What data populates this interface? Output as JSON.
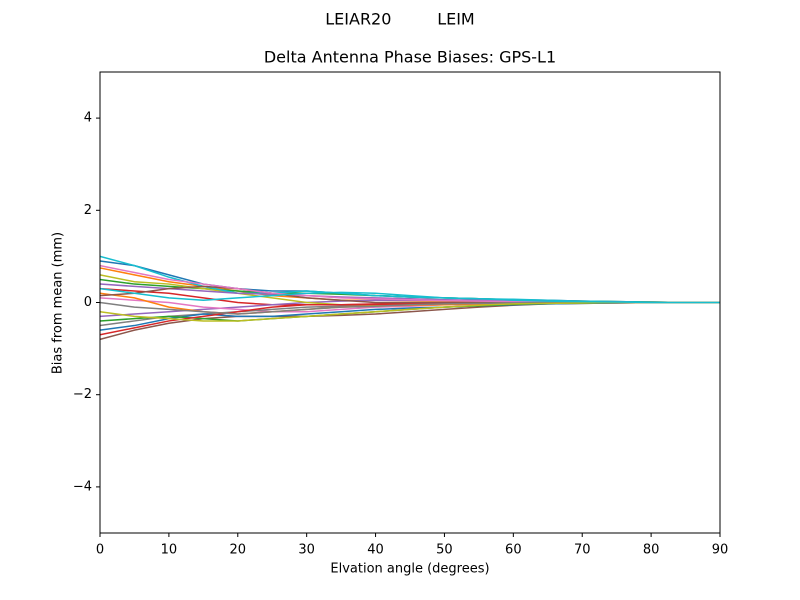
{
  "chart_data": {
    "type": "line",
    "suptitle": "LEIAR20         LEIM",
    "title": "Delta Antenna Phase Biases: GPS-L1",
    "xlabel": "Elvation angle (degrees)",
    "ylabel": "Bias from mean (mm)",
    "x": [
      0,
      5,
      10,
      15,
      20,
      25,
      30,
      35,
      40,
      45,
      50,
      55,
      60,
      65,
      70,
      75,
      80,
      85,
      90
    ],
    "xlim": [
      0,
      90
    ],
    "xticks": [
      0,
      10,
      20,
      30,
      40,
      50,
      60,
      70,
      80,
      90
    ],
    "ylim": [
      -5,
      5
    ],
    "yticks": [
      {
        "value": -4,
        "label": "−4"
      },
      {
        "value": -2,
        "label": "−2"
      },
      0,
      2,
      4
    ],
    "grid": false,
    "series": [
      {
        "color": "#1f77b4",
        "values": [
          0.9,
          0.8,
          0.6,
          0.4,
          0.3,
          0.25,
          0.25,
          0.2,
          0.15,
          0.12,
          0.1,
          0.08,
          0.06,
          0.05,
          0.03,
          0.02,
          0.01,
          0,
          0
        ]
      },
      {
        "color": "#ff7f0e",
        "values": [
          0.75,
          0.6,
          0.45,
          0.35,
          0.25,
          0.15,
          0.1,
          0.05,
          0.05,
          0.04,
          0.03,
          0.02,
          0.02,
          0.01,
          0.01,
          0,
          0,
          0,
          0
        ]
      },
      {
        "color": "#2ca02c",
        "values": [
          0.5,
          0.4,
          0.35,
          0.3,
          0.25,
          0.2,
          0.2,
          0.18,
          0.15,
          0.12,
          0.1,
          0.08,
          0.06,
          0.04,
          0.03,
          0.02,
          0.01,
          0,
          0
        ]
      },
      {
        "color": "#d62728",
        "values": [
          0.3,
          0.25,
          0.2,
          0.1,
          0,
          -0.05,
          -0.05,
          -0.05,
          -0.03,
          -0.02,
          -0.01,
          0,
          0,
          0,
          0,
          0,
          0,
          0,
          0
        ]
      },
      {
        "color": "#9467bd",
        "values": [
          -0.3,
          -0.25,
          -0.2,
          -0.15,
          -0.1,
          -0.05,
          0,
          0.03,
          0.05,
          0.05,
          0.05,
          0.04,
          0.03,
          0.02,
          0.01,
          0.01,
          0,
          0,
          0
        ]
      },
      {
        "color": "#8c564b",
        "values": [
          -0.8,
          -0.6,
          -0.45,
          -0.35,
          -0.3,
          -0.3,
          -0.3,
          -0.28,
          -0.25,
          -0.2,
          -0.15,
          -0.1,
          -0.06,
          -0.03,
          -0.02,
          -0.01,
          0,
          0,
          0
        ]
      },
      {
        "color": "#e377c2",
        "values": [
          0.1,
          0.05,
          0,
          -0.1,
          -0.15,
          -0.2,
          -0.2,
          -0.15,
          -0.1,
          -0.08,
          -0.05,
          -0.04,
          -0.03,
          -0.02,
          -0.01,
          0,
          0,
          0,
          0
        ]
      },
      {
        "color": "#7f7f7f",
        "values": [
          -0.5,
          -0.4,
          -0.3,
          -0.25,
          -0.2,
          -0.15,
          -0.1,
          -0.08,
          -0.05,
          -0.03,
          -0.02,
          -0.01,
          0,
          0,
          0,
          0,
          0,
          0,
          0
        ]
      },
      {
        "color": "#bcbd22",
        "values": [
          0.6,
          0.45,
          0.4,
          0.3,
          0.2,
          0.1,
          0,
          -0.05,
          -0.05,
          -0.04,
          -0.03,
          -0.02,
          -0.01,
          0,
          0,
          0,
          0,
          0,
          0
        ]
      },
      {
        "color": "#17becf",
        "values": [
          1.0,
          0.8,
          0.55,
          0.35,
          0.2,
          0.2,
          0.25,
          0.2,
          0.15,
          0.12,
          0.1,
          0.08,
          0.07,
          0.05,
          0.03,
          0.02,
          0.01,
          0,
          0
        ]
      },
      {
        "color": "#1f77b4",
        "values": [
          -0.6,
          -0.5,
          -0.35,
          -0.25,
          -0.3,
          -0.3,
          -0.25,
          -0.2,
          -0.15,
          -0.12,
          -0.1,
          -0.07,
          -0.05,
          -0.03,
          -0.02,
          -0.01,
          0,
          0,
          0
        ]
      },
      {
        "color": "#ff7f0e",
        "values": [
          0.2,
          0.1,
          -0.1,
          -0.2,
          -0.25,
          -0.2,
          -0.15,
          -0.1,
          -0.08,
          -0.06,
          -0.05,
          -0.03,
          -0.02,
          -0.01,
          0,
          0,
          0,
          0,
          0
        ]
      },
      {
        "color": "#2ca02c",
        "values": [
          -0.4,
          -0.35,
          -0.3,
          -0.35,
          -0.4,
          -0.35,
          -0.3,
          -0.25,
          -0.2,
          -0.15,
          -0.1,
          -0.07,
          -0.04,
          -0.02,
          -0.01,
          0,
          0,
          0,
          0
        ]
      },
      {
        "color": "#d62728",
        "values": [
          -0.7,
          -0.55,
          -0.4,
          -0.3,
          -0.2,
          -0.1,
          -0.05,
          -0.05,
          -0.04,
          -0.03,
          -0.02,
          -0.01,
          0,
          0,
          0,
          0,
          0,
          0,
          0
        ]
      },
      {
        "color": "#9467bd",
        "values": [
          0.4,
          0.35,
          0.3,
          0.25,
          0.2,
          0.18,
          0.15,
          0.12,
          0.1,
          0.08,
          0.06,
          0.05,
          0.04,
          0.03,
          0.02,
          0.01,
          0,
          0,
          0
        ]
      },
      {
        "color": "#8c564b",
        "values": [
          0.15,
          0.2,
          0.3,
          0.35,
          0.3,
          0.2,
          0.1,
          0.05,
          0,
          0,
          0,
          0,
          0,
          0,
          0,
          0,
          0,
          0,
          0
        ]
      },
      {
        "color": "#e377c2",
        "values": [
          0.8,
          0.65,
          0.5,
          0.4,
          0.3,
          0.2,
          0.15,
          0.1,
          0.08,
          0.06,
          0.04,
          0.03,
          0.02,
          0.01,
          0,
          0,
          0,
          0,
          0
        ]
      },
      {
        "color": "#7f7f7f",
        "values": [
          0,
          -0.1,
          -0.15,
          -0.2,
          -0.25,
          -0.2,
          -0.15,
          -0.1,
          -0.08,
          -0.05,
          -0.03,
          -0.02,
          -0.01,
          0,
          0,
          0,
          0,
          0,
          0
        ]
      },
      {
        "color": "#bcbd22",
        "values": [
          -0.2,
          -0.3,
          -0.35,
          -0.4,
          -0.4,
          -0.35,
          -0.3,
          -0.25,
          -0.2,
          -0.15,
          -0.1,
          -0.06,
          -0.03,
          -0.02,
          -0.01,
          0,
          0,
          0,
          0
        ]
      },
      {
        "color": "#17becf",
        "values": [
          0.3,
          0.2,
          0.1,
          0.05,
          0.1,
          0.15,
          0.2,
          0.22,
          0.2,
          0.15,
          0.1,
          0.08,
          0.05,
          0.03,
          0.02,
          0.01,
          0,
          0,
          0
        ]
      }
    ]
  }
}
